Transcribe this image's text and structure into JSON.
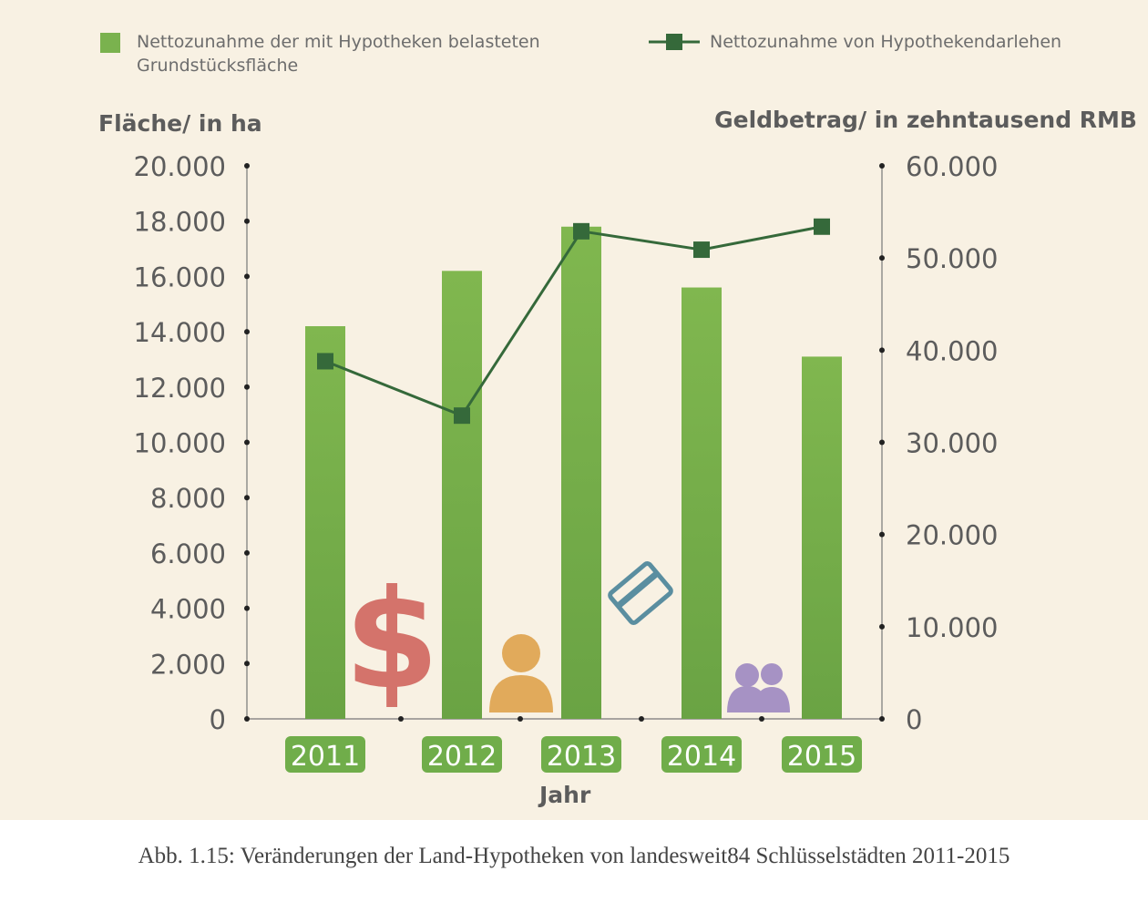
{
  "chart_data": {
    "type": "bar",
    "categories": [
      "2011",
      "2012",
      "2013",
      "2014",
      "2015"
    ],
    "series": [
      {
        "name": "Nettozunahme der mit Hypotheken belasteten Grundstücksfläche",
        "type": "bar",
        "axis": "left",
        "color": "#7ab24e",
        "values": [
          14200,
          16200,
          17800,
          15600,
          13100
        ]
      },
      {
        "name": "Nettozunahme von Hypothekendarlehen",
        "type": "line",
        "axis": "right",
        "color": "#35693a",
        "values": [
          38800,
          32900,
          52900,
          50900,
          53400
        ]
      }
    ],
    "xlabel": "Jahr",
    "ylabel_left": "Fläche/ in ha",
    "ylabel_right": "Geldbetrag/ in zehntausend RMB",
    "ylim_left": [
      0,
      20000
    ],
    "ylim_right": [
      0,
      60000
    ],
    "yticks_left": [
      {
        "value": 0,
        "label": "0"
      },
      {
        "value": 2000,
        "label": "2.000"
      },
      {
        "value": 4000,
        "label": "4.000"
      },
      {
        "value": 6000,
        "label": "6.000"
      },
      {
        "value": 8000,
        "label": "8.000"
      },
      {
        "value": 10000,
        "label": "10.000"
      },
      {
        "value": 12000,
        "label": "12.000"
      },
      {
        "value": 14000,
        "label": "14.000"
      },
      {
        "value": 16000,
        "label": "16.000"
      },
      {
        "value": 18000,
        "label": "18.000"
      },
      {
        "value": 20000,
        "label": "20.000"
      }
    ],
    "yticks_right": [
      {
        "value": 0,
        "label": "0"
      },
      {
        "value": 10000,
        "label": "10.000"
      },
      {
        "value": 20000,
        "label": "20.000"
      },
      {
        "value": 30000,
        "label": "30.000"
      },
      {
        "value": 40000,
        "label": "40.000"
      },
      {
        "value": 50000,
        "label": "50.000"
      },
      {
        "value": 60000,
        "label": "60.000"
      }
    ],
    "legend_position": "top",
    "grid": false
  },
  "legend": {
    "bar_line1": "Nettozunahme der mit Hypotheken belasteten",
    "bar_line2": "Grundstücksfläche",
    "line_label": "Nettozunahme von Hypothekendarlehen"
  },
  "decorations": [
    "dollar-icon",
    "person-icon",
    "credit-card-icon",
    "group-icon"
  ],
  "colors": {
    "background": "#f8f1e3",
    "bar": "#7ab24e",
    "line": "#35693a",
    "dollar": "#d4736b",
    "person": "#e1aa5b",
    "card": "#5a8ea0",
    "group": "#a692c4",
    "year_badge": "#70ad4a"
  },
  "caption": "Abb. 1.15: Veränderungen der Land-Hypotheken von landesweit84 Schlüsselstädten 2011-2015"
}
